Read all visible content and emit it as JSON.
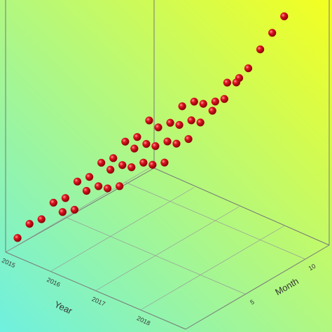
{
  "chart_data": {
    "type": "scatter3d",
    "xlabel": "Year",
    "ylabel": "Month",
    "xlim": [
      2015,
      2019
    ],
    "xticks": [
      2015,
      2016,
      2017,
      2018
    ],
    "ylim": [
      0,
      12
    ],
    "yticks": [
      5,
      10
    ],
    "zlim": [
      0,
      100
    ],
    "color": "#d0101a",
    "x": [
      2015,
      2015,
      2015,
      2015,
      2015,
      2015,
      2015,
      2015,
      2015,
      2015,
      2015,
      2015,
      2016,
      2016,
      2016,
      2016,
      2016,
      2016,
      2016,
      2016,
      2016,
      2016,
      2016,
      2016,
      2017,
      2017,
      2017,
      2017,
      2017,
      2017,
      2017,
      2017,
      2017,
      2017,
      2017,
      2017,
      2018,
      2018,
      2018,
      2018,
      2018,
      2018,
      2018,
      2018,
      2018,
      2018,
      2018,
      2018
    ],
    "y": [
      1,
      2,
      3,
      4,
      5,
      6,
      7,
      8,
      9,
      10,
      11,
      12,
      1,
      2,
      3,
      4,
      5,
      6,
      7,
      8,
      9,
      10,
      11,
      12,
      1,
      2,
      3,
      4,
      5,
      6,
      7,
      8,
      9,
      10,
      11,
      12,
      1,
      2,
      3,
      4,
      5,
      6,
      7,
      8,
      9,
      10,
      11,
      12
    ],
    "z": [
      3,
      6,
      5,
      9,
      8,
      12,
      11,
      14,
      13,
      17,
      16,
      20,
      22,
      20,
      25,
      24,
      28,
      27,
      31,
      30,
      34,
      33,
      37,
      36,
      40,
      38,
      43,
      42,
      46,
      45,
      49,
      48,
      52,
      50,
      55,
      54,
      58,
      56,
      61,
      60,
      64,
      66,
      68,
      72,
      75,
      80,
      84,
      88
    ]
  }
}
